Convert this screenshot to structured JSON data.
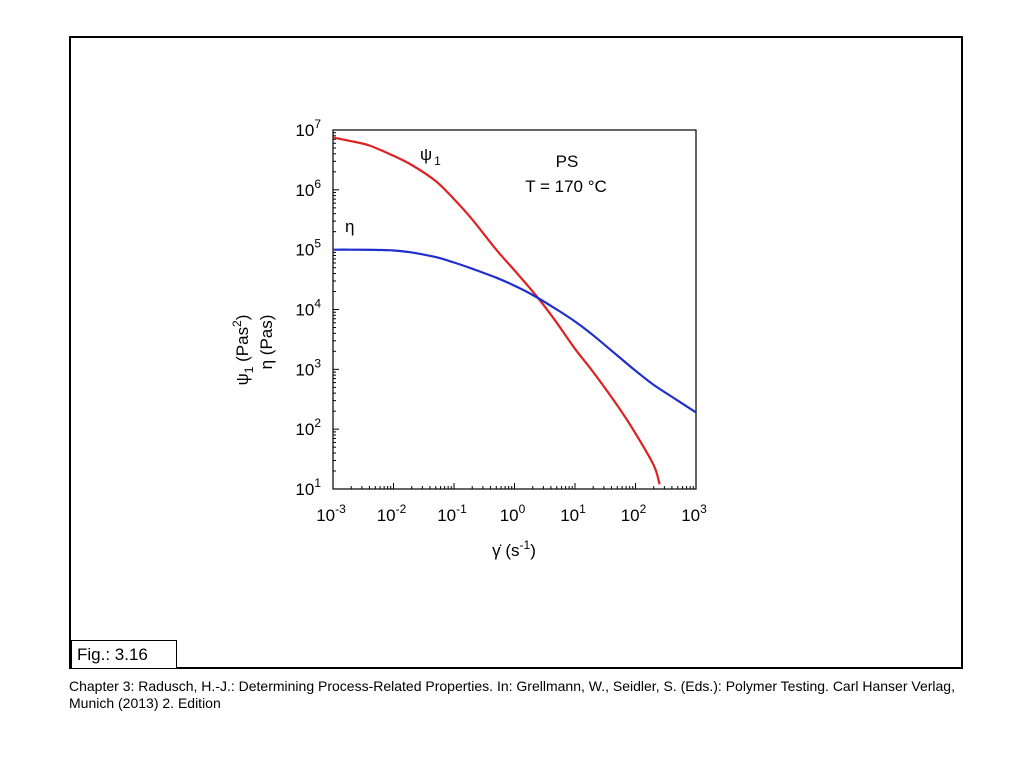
{
  "figure": {
    "label": "Fig.: 3.16",
    "caption": "Chapter 3: Radusch, H.-J.: Determining Process-Related Properties. In: Grellmann, W., Seidler, S. (Eds.): Polymer Testing. Carl Hanser Verlag, Munich (2013) 2. Edition"
  },
  "chart_data": {
    "type": "line",
    "title": "",
    "x_scale": "log",
    "y_scale": "log",
    "xlim": [
      0.001,
      1000
    ],
    "ylim": [
      10,
      10000000
    ],
    "x_ticks": [
      {
        "value": 0.001,
        "base": "10",
        "exp": "-3"
      },
      {
        "value": 0.01,
        "base": "10",
        "exp": "-2"
      },
      {
        "value": 0.1,
        "base": "10",
        "exp": "-1"
      },
      {
        "value": 1,
        "base": "10",
        "exp": "0"
      },
      {
        "value": 10,
        "base": "10",
        "exp": "1"
      },
      {
        "value": 100,
        "base": "10",
        "exp": "2"
      },
      {
        "value": 1000,
        "base": "10",
        "exp": "3"
      }
    ],
    "y_ticks": [
      {
        "value": 10,
        "base": "10",
        "exp": "1"
      },
      {
        "value": 100,
        "base": "10",
        "exp": "2"
      },
      {
        "value": 1000,
        "base": "10",
        "exp": "3"
      },
      {
        "value": 10000,
        "base": "10",
        "exp": "4"
      },
      {
        "value": 100000,
        "base": "10",
        "exp": "5"
      },
      {
        "value": 1000000,
        "base": "10",
        "exp": "6"
      },
      {
        "value": 10000000,
        "base": "10",
        "exp": "7"
      }
    ],
    "xlabel": {
      "symbol": "γ̇",
      "open": " (s",
      "exp": "-1",
      "close": ")"
    },
    "ylabel_top": {
      "symbol": "ψ",
      "sub": "1",
      "open": " (Pas",
      "exp": "2",
      "close": ")"
    },
    "ylabel_bottom": "η  (Pas)",
    "annotations": [
      {
        "text": "PS"
      },
      {
        "text": "T = 170 °C"
      }
    ],
    "grid": false,
    "series": [
      {
        "name": "ψ1",
        "label_symbol": "ψ",
        "label_sub": "1",
        "color": "#dd2222",
        "x": [
          0.001,
          0.002,
          0.004,
          0.01,
          0.02,
          0.05,
          0.1,
          0.2,
          0.5,
          1,
          2,
          3,
          5,
          10,
          20,
          50,
          100,
          200,
          250
        ],
        "y": [
          7500000,
          6500000,
          5500000,
          3700000,
          2600000,
          1400000,
          700000,
          320000,
          100000,
          45000,
          20000,
          12000,
          6000,
          2200,
          900,
          250,
          85,
          25,
          12
        ]
      },
      {
        "name": "η",
        "label_symbol": "η",
        "label_sub": "",
        "color": "#1f2fcc",
        "x": [
          0.001,
          0.002,
          0.005,
          0.01,
          0.02,
          0.05,
          0.1,
          0.2,
          0.5,
          1,
          2,
          5,
          10,
          20,
          50,
          100,
          200,
          500,
          1000
        ],
        "y": [
          100000,
          100000,
          99000,
          97000,
          90000,
          75000,
          61000,
          48000,
          34000,
          25000,
          17500,
          10000,
          6300,
          3700,
          1700,
          950,
          550,
          300,
          190
        ]
      }
    ]
  }
}
